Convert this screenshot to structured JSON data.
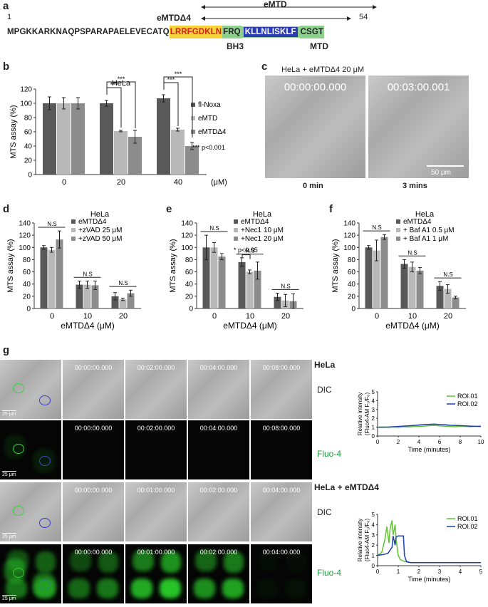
{
  "panel_a": {
    "label": "a",
    "emtd": "eMTD",
    "emtd_d4": "eMTDΔ4",
    "num_start": "1",
    "num_end": "54",
    "seq_plain": "MPGKKARKNAQPSPARAPAELEVECATQ",
    "seq_bh3": "LRRFGDKLN",
    "seq_mid": "FRQ",
    "seq_mtd": "KLLNLISKLF",
    "seq_end": "CSGT",
    "bh3_label": "BH3",
    "mtd_label": "MTD",
    "colors": {
      "bh3_bg": "#f5d23a",
      "bh3_text": "#d81f1f",
      "mtd_bg": "#2a3bb3",
      "green_bg": "#8ed18e"
    }
  },
  "panel_b": {
    "label": "b"
  },
  "panel_c": {
    "label": "c",
    "title": "HeLa + eMTDΔ4 20 μM",
    "ts1": "00:00:00.000",
    "ts2": "00:03:00.001",
    "scale": "50 μm",
    "cap1": "0 min",
    "cap2": "3 mins"
  },
  "panel_d": {
    "label": "d"
  },
  "panel_e": {
    "label": "e"
  },
  "panel_f": {
    "label": "f"
  },
  "panel_g": {
    "label": "g",
    "cond1": "HeLa",
    "cond2": "HeLa + eMTDΔ4",
    "dic": "DIC",
    "fluo": "Fluo-4",
    "scale": "25 μm",
    "roi1": "ROI.01",
    "roi2": "ROI.02",
    "row1_ts": [
      "00:00:00.000",
      "00:02:00.000",
      "00:04:00.000",
      "00:08:00.000"
    ],
    "row2_ts": [
      "00:00:00.000",
      "00:02:00.000",
      "00:04:00.000",
      "00:08:00.000"
    ],
    "row3_ts": [
      "00:00:00.000",
      "00:01:00.000",
      "00:02:00.000",
      "00:04:00.000"
    ],
    "row4_ts": [
      "00:00:00.000",
      "00:01:00.000",
      "00:02:00.000",
      "00:04:00.000"
    ]
  },
  "chart_data": [
    {
      "id": "b",
      "type": "bar",
      "title": "HeLa",
      "categories": [
        "0",
        "20",
        "40"
      ],
      "xunit": "(μM)",
      "ylabel": "MTS assay (%)",
      "ylim": [
        0,
        120
      ],
      "yticks": [
        0,
        20,
        40,
        60,
        80,
        100,
        120
      ],
      "series": [
        {
          "name": "fl-Noxa",
          "values": [
            100,
            100,
            107
          ],
          "errors": [
            9,
            4,
            5
          ],
          "color": "#595959"
        },
        {
          "name": "eMTD",
          "values": [
            100,
            61,
            63
          ],
          "errors": [
            8,
            1,
            2
          ],
          "color": "#b8b8b8"
        },
        {
          "name": "eMTDΔ4",
          "values": [
            100,
            53,
            40
          ],
          "errors": [
            8,
            9,
            5
          ],
          "color": "#8c8c8c"
        }
      ],
      "annotations": [
        "***",
        "***",
        "***",
        "***"
      ],
      "note": "*** p<0.001"
    },
    {
      "id": "d",
      "type": "bar",
      "title": "HeLa",
      "categories": [
        "0",
        "10",
        "20"
      ],
      "xlabel": "eMTDΔ4 (μM)",
      "ylabel": "MTS assay (%)",
      "ylim": [
        0,
        140
      ],
      "yticks": [
        0,
        20,
        40,
        60,
        80,
        100,
        120,
        140
      ],
      "series": [
        {
          "name": "eMTDΔ4",
          "values": [
            100,
            39,
            20
          ],
          "errors": [
            3,
            6,
            6
          ],
          "color": "#595959"
        },
        {
          "name": "+zVAD 25 μM",
          "values": [
            96,
            39,
            15
          ],
          "errors": [
            4,
            6,
            2
          ],
          "color": "#b8b8b8"
        },
        {
          "name": "+zVAD 50 μM",
          "values": [
            113,
            38,
            25
          ],
          "errors": [
            14,
            7,
            5
          ],
          "color": "#8c8c8c"
        }
      ],
      "annotations": [
        "N.S",
        "N.S",
        "N.S"
      ]
    },
    {
      "id": "e",
      "type": "bar",
      "title": "HeLa",
      "categories": [
        "0",
        "10",
        "20"
      ],
      "xlabel": "eMTDΔ4 (μM)",
      "ylabel": "MTS assay (%)",
      "ylim": [
        0,
        140
      ],
      "yticks": [
        0,
        20,
        40,
        60,
        80,
        100,
        120,
        140
      ],
      "series": [
        {
          "name": "eMTDΔ4",
          "values": [
            100,
            76,
            19
          ],
          "errors": [
            20,
            7,
            6
          ],
          "color": "#595959"
        },
        {
          "name": "+Nec1 10 μM",
          "values": [
            100,
            60,
            13
          ],
          "errors": [
            8,
            3,
            10
          ],
          "color": "#b8b8b8"
        },
        {
          "name": "+Nec1 20 μM",
          "values": [
            85,
            62,
            12
          ],
          "errors": [
            5,
            14,
            12
          ],
          "color": "#8c8c8c"
        }
      ],
      "annotations": [
        "N.S",
        "*",
        "N.S",
        "N.S"
      ],
      "note": "* p<0.05"
    },
    {
      "id": "f",
      "type": "bar",
      "title": "HeLa",
      "categories": [
        "0",
        "10",
        "20"
      ],
      "xlabel": "eMTDΔ4 (μM)",
      "ylabel": "MTS assay (%)",
      "ylim": [
        0,
        140
      ],
      "yticks": [
        0,
        20,
        40,
        60,
        80,
        100,
        120,
        140
      ],
      "series": [
        {
          "name": "eMTDΔ4",
          "values": [
            100,
            73,
            37
          ],
          "errors": [
            3,
            7,
            7
          ],
          "color": "#595959"
        },
        {
          "name": "+ Baf A1 0.5 μM",
          "values": [
            95,
            68,
            32
          ],
          "errors": [
            17,
            8,
            7
          ],
          "color": "#b8b8b8"
        },
        {
          "name": "+ Baf A1 1 μM",
          "values": [
            117,
            62,
            18
          ],
          "errors": [
            4,
            5,
            2
          ],
          "color": "#8c8c8c"
        }
      ],
      "annotations": [
        "N.S",
        "N.S",
        "N.S"
      ]
    },
    {
      "id": "g1",
      "type": "line",
      "xlabel": "Time (minutes)",
      "ylabel": "Relative intensity",
      "ylabel2": "(Fluo4-AM  F₁/F₀)",
      "xlim": [
        0,
        10
      ],
      "ylim": [
        0,
        5
      ],
      "xticks": [
        0,
        2,
        4,
        6,
        8,
        10
      ],
      "yticks": [
        0,
        1,
        2,
        3,
        4,
        5
      ],
      "series": [
        {
          "name": "ROI.01",
          "color": "#5ec42f",
          "x": [
            0,
            0.5,
            1,
            1.5,
            2,
            2.5,
            3,
            3.5,
            4,
            4.5,
            5,
            5.5,
            6,
            6.5,
            7,
            7.5,
            8,
            8.5,
            9,
            9.5,
            10
          ],
          "y": [
            1,
            1.02,
            0.98,
            1.03,
            1,
            1.05,
            1.02,
            1.08,
            1.1,
            1.12,
            1.18,
            1.2,
            1.15,
            1.12,
            1.08,
            1.05,
            1.1,
            1.08,
            1.05,
            1.1,
            1.12
          ]
        },
        {
          "name": "ROI.02",
          "color": "#1f3fae",
          "x": [
            0,
            0.5,
            1,
            1.5,
            2,
            2.5,
            3,
            3.5,
            4,
            4.5,
            5,
            5.5,
            6,
            6.5,
            7,
            7.5,
            8,
            8.5,
            9,
            9.5,
            10
          ],
          "y": [
            1,
            1,
            1.02,
            1.05,
            1.08,
            1.12,
            1.15,
            1.2,
            1.25,
            1.3,
            1.32,
            1.35,
            1.3,
            1.28,
            1.22,
            1.2,
            1.18,
            1.15,
            1.12,
            1.1,
            1.08
          ]
        }
      ]
    },
    {
      "id": "g2",
      "type": "line",
      "xlabel": "Time (minutes)",
      "ylabel": "Relative intensity",
      "ylabel2": "(Fluo4-AM  F₁/F₀)",
      "xlim": [
        0,
        5
      ],
      "ylim": [
        0,
        5
      ],
      "xticks": [
        0,
        1,
        2,
        3,
        4,
        5
      ],
      "yticks": [
        0,
        1,
        2,
        3,
        4,
        5
      ],
      "series": [
        {
          "name": "ROI.01",
          "color": "#5ec42f",
          "x": [
            0,
            0.2,
            0.35,
            0.45,
            0.55,
            0.6,
            0.7,
            0.75,
            0.85,
            0.9,
            1.0,
            1.1,
            1.3,
            1.6,
            2,
            2.5,
            3,
            4,
            5
          ],
          "y": [
            1,
            1.3,
            2.5,
            3.8,
            2.2,
            3.5,
            4.4,
            3.0,
            4.0,
            2.5,
            1.0,
            0.6,
            0.4,
            0.3,
            0.3,
            0.3,
            0.3,
            0.3,
            0.3
          ]
        },
        {
          "name": "ROI.02",
          "color": "#1f3fae",
          "x": [
            0,
            0.3,
            0.5,
            0.7,
            0.75,
            0.85,
            0.9,
            1.0,
            1.25,
            1.3,
            1.4,
            1.6,
            2,
            2.5,
            3,
            4,
            5
          ],
          "y": [
            1,
            1.1,
            1.2,
            1.8,
            2.9,
            2.0,
            2.8,
            2.9,
            2.9,
            1.0,
            0.4,
            0.3,
            0.3,
            0.3,
            0.3,
            0.3,
            0.3
          ]
        }
      ]
    }
  ]
}
